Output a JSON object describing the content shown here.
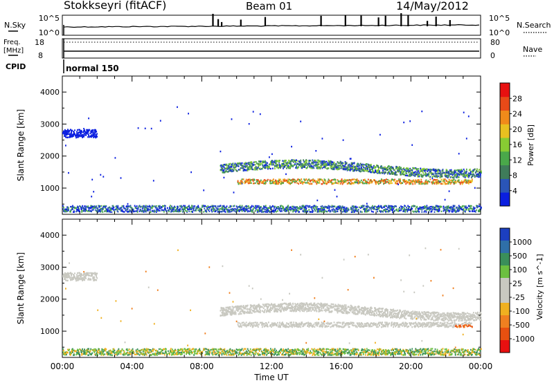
{
  "header": {
    "station": "Stokkseyri (fitACF)",
    "beam": "Beam 01",
    "date": "14/May/2012"
  },
  "top_panels": {
    "nsky_label": "N.Sky",
    "nsky_ticks": [
      "10^5",
      "10^0"
    ],
    "nsearch_label": "N.Search",
    "nsearch_ticks": [
      "10^5",
      "10^0"
    ],
    "freq_label_1": "Freq.",
    "freq_label_2": "[MHz]",
    "freq_ticks": [
      "18",
      "8"
    ],
    "nave_label": "Nave",
    "nave_ticks": [
      "80",
      "0"
    ],
    "cpid_label": "CPID",
    "cpid_value": "normal 150"
  },
  "chart_data": [
    {
      "type": "heatmap",
      "panel": "power",
      "xlabel": "",
      "ylabel": "Slant Range [km]",
      "xlim": [
        0,
        24
      ],
      "ylim": [
        180,
        4500
      ],
      "yticks": [
        1000,
        2000,
        3000,
        4000
      ],
      "colorbar": {
        "label": "Power [dB]",
        "ticks": [
          "4",
          "8",
          "12",
          "16",
          "20",
          "24",
          "28"
        ],
        "colors": [
          "#0b1fe0",
          "#2a55b8",
          "#3f7c5a",
          "#4aa84a",
          "#88cc33",
          "#e8c020",
          "#f08a1a",
          "#e84a18",
          "#e81010"
        ]
      },
      "features": [
        {
          "name": "band-main",
          "x": [
            9.0,
            24.0
          ],
          "y_center": 1600,
          "thickness": 260,
          "intensity": "medium-high"
        },
        {
          "name": "band-lower",
          "x": [
            10.0,
            23.5
          ],
          "y_center": 1200,
          "thickness": 150,
          "intensity": "high"
        },
        {
          "name": "early-arc",
          "x": [
            0.0,
            2.0
          ],
          "y_center": 2700,
          "thickness": 250,
          "intensity": "low"
        },
        {
          "name": "near-range",
          "x": [
            0.0,
            24.0
          ],
          "y_center": 350,
          "thickness": 200,
          "intensity": "low-medium"
        }
      ]
    },
    {
      "type": "heatmap",
      "panel": "velocity",
      "xlabel": "Time UT",
      "ylabel": "Slant Range [km]",
      "xlim": [
        0,
        24
      ],
      "ylim": [
        180,
        4500
      ],
      "yticks": [
        1000,
        2000,
        3000,
        4000
      ],
      "xticks": [
        "00:00",
        "04:00",
        "08:00",
        "12:00",
        "16:00",
        "20:00",
        "00:00"
      ],
      "colorbar": {
        "label": "Velocity [m s^-1]",
        "ticks": [
          "1000",
          "500",
          "100",
          "25",
          "-25",
          "-100",
          "-500",
          "-1000"
        ],
        "colors": [
          "#1c3fbf",
          "#2f6fa8",
          "#3a8f5a",
          "#6cc040",
          "#c8c8c0",
          "#c8c8c0",
          "#f0b020",
          "#f08020",
          "#e85010",
          "#e81010"
        ]
      },
      "features": [
        {
          "name": "band-main",
          "x": [
            9.0,
            24.0
          ],
          "y_center": 1600,
          "thickness": 500,
          "velocity": "near-zero"
        },
        {
          "name": "near-range",
          "x": [
            0.0,
            7.0
          ],
          "y_center": 450,
          "thickness": 250,
          "velocity": "positive"
        }
      ]
    }
  ]
}
